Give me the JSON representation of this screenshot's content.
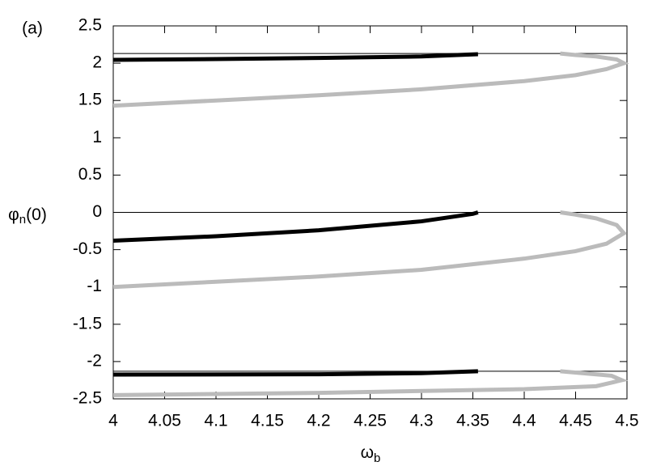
{
  "chart_data": {
    "type": "line",
    "annotation": "(a)",
    "x_label": [
      "ω",
      "b"
    ],
    "y_label": [
      "φ",
      "n",
      "(0)"
    ],
    "xlim": [
      4,
      4.5
    ],
    "xticks": [
      4,
      4.05,
      4.1,
      4.15,
      4.2,
      4.25,
      4.3,
      4.35,
      4.4,
      4.45,
      4.5
    ],
    "ylim": [
      -2.5,
      2.5
    ],
    "yticks": [
      -2.5,
      -2,
      -1.5,
      -1,
      -0.5,
      0,
      0.5,
      1,
      1.5,
      2,
      2.5
    ],
    "hlines": [
      2.13,
      0,
      -2.13
    ],
    "series": [
      {
        "color": "#000000",
        "x": [
          4.0,
          4.1,
          4.2,
          4.3,
          4.355
        ],
        "values": [
          2.045,
          2.055,
          2.07,
          2.09,
          2.12
        ]
      },
      {
        "color": "#000000",
        "x": [
          4.0,
          4.1,
          4.2,
          4.3,
          4.35,
          4.355
        ],
        "values": [
          -0.38,
          -0.32,
          -0.24,
          -0.12,
          -0.02,
          0
        ]
      },
      {
        "color": "#000000",
        "x": [
          4.0,
          4.2,
          4.3,
          4.355
        ],
        "values": [
          -2.175,
          -2.17,
          -2.155,
          -2.13
        ]
      },
      {
        "color": "#bbbbbb",
        "x": [
          4.0,
          4.1,
          4.2,
          4.3,
          4.4,
          4.45,
          4.48,
          4.497,
          4.49,
          4.47,
          4.45,
          4.435
        ],
        "values": [
          1.43,
          1.5,
          1.57,
          1.65,
          1.76,
          1.84,
          1.92,
          2.0,
          2.05,
          2.09,
          2.11,
          2.13
        ]
      },
      {
        "color": "#bbbbbb",
        "x": [
          4.0,
          4.1,
          4.2,
          4.3,
          4.4,
          4.45,
          4.48,
          4.497,
          4.49,
          4.47,
          4.45,
          4.435
        ],
        "values": [
          -1.0,
          -0.93,
          -0.86,
          -0.77,
          -0.62,
          -0.52,
          -0.42,
          -0.28,
          -0.17,
          -0.08,
          -0.03,
          0
        ]
      },
      {
        "color": "#bbbbbb",
        "x": [
          4.0,
          4.2,
          4.4,
          4.47,
          4.495,
          4.485,
          4.46,
          4.435
        ],
        "values": [
          -2.45,
          -2.42,
          -2.37,
          -2.33,
          -2.25,
          -2.19,
          -2.16,
          -2.13
        ]
      }
    ]
  }
}
